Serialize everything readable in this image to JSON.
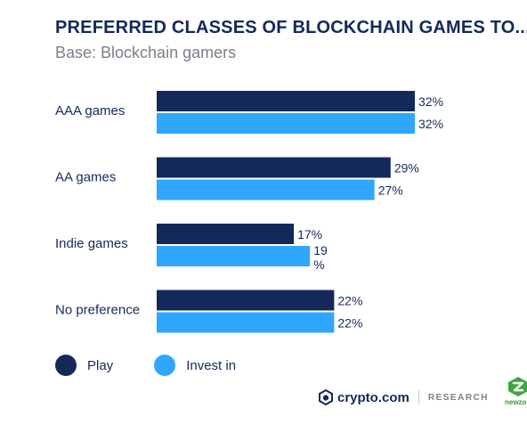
{
  "title": "PREFERRED CLASSES OF BLOCKCHAIN GAMES TO...",
  "subtitle": "Base: Blockchain gamers",
  "colors": {
    "play": "#14295a",
    "invest": "#2fa7ff",
    "text": "#14295a"
  },
  "chart_data": {
    "type": "bar",
    "orientation": "horizontal",
    "categories": [
      "AAA games",
      "AA games",
      "Indie games",
      "No preference"
    ],
    "series": [
      {
        "name": "Play",
        "values": [
          32,
          29,
          17,
          22
        ],
        "labels": [
          "32%",
          "29%",
          "17%",
          "22%"
        ]
      },
      {
        "name": "Invest in",
        "values": [
          32,
          27,
          19,
          22
        ],
        "labels": [
          "32%",
          "27%",
          "19\n%",
          "22%"
        ]
      }
    ],
    "legend_position": "bottom-left"
  },
  "legend": [
    {
      "label": "Play"
    },
    {
      "label": "Invest in"
    }
  ],
  "footer": {
    "brand": "crypto.com",
    "research": "RESEARCH",
    "partner": "newzoo"
  }
}
